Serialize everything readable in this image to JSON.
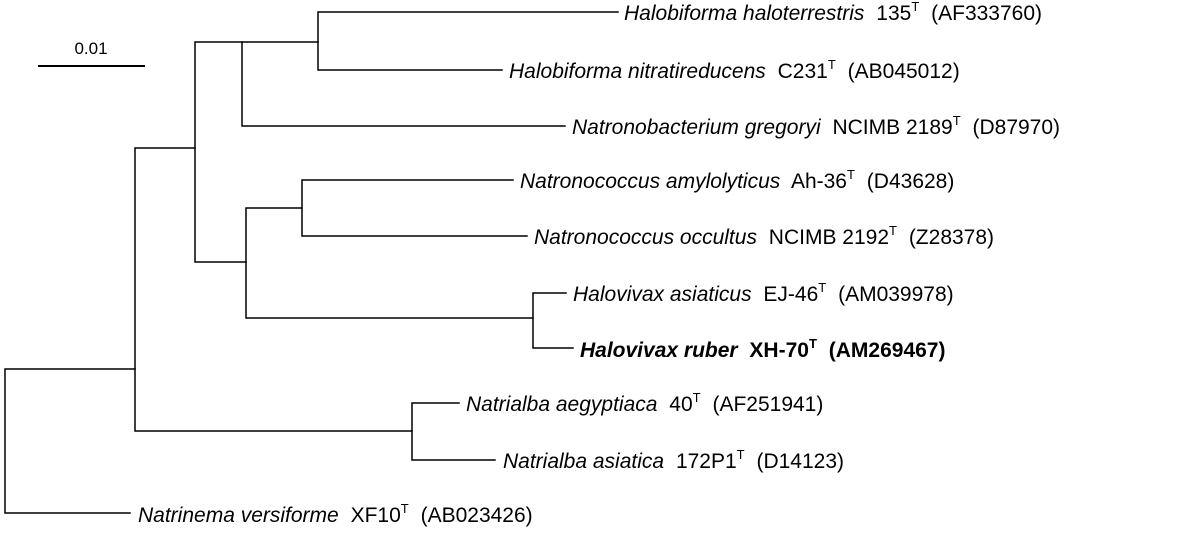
{
  "scale_bar": {
    "label": "0.01"
  },
  "taxa": [
    {
      "id": "halobiforma-haloterrestris",
      "genus_species": "Halobiforma haloterrestris",
      "strain": "135",
      "type_mark": "T",
      "accession": "(AF333760)",
      "bold": false
    },
    {
      "id": "halobiforma-nitratireducens",
      "genus_species": "Halobiforma nitratireducens",
      "strain": "C231",
      "type_mark": "T",
      "accession": "(AB045012)",
      "bold": false
    },
    {
      "id": "natronobacterium-gregoryi",
      "genus_species": "Natronobacterium gregoryi",
      "strain": "NCIMB 2189",
      "type_mark": "T",
      "accession": "(D87970)",
      "bold": false
    },
    {
      "id": "natronococcus-amylolyticus",
      "genus_species": "Natronococcus amylolyticus",
      "strain": "Ah-36",
      "type_mark": "T",
      "accession": "(D43628)",
      "bold": false
    },
    {
      "id": "natronococcus-occultus",
      "genus_species": "Natronococcus occultus",
      "strain": "NCIMB 2192",
      "type_mark": "T",
      "accession": "(Z28378)",
      "bold": false
    },
    {
      "id": "halovivax-asiaticus",
      "genus_species": "Halovivax asiaticus",
      "strain": "EJ-46",
      "type_mark": "T",
      "accession": "(AM039978)",
      "bold": false
    },
    {
      "id": "halovivax-ruber",
      "genus_species": "Halovivax ruber",
      "strain": "XH-70",
      "type_mark": "T",
      "accession": "(AM269467)",
      "bold": true
    },
    {
      "id": "natrialba-aegyptiaca",
      "genus_species": "Natrialba aegyptiaca",
      "strain": "40",
      "type_mark": "T",
      "accession": "(AF251941)",
      "bold": false
    },
    {
      "id": "natrialba-asiatica",
      "genus_species": "Natrialba asiatica",
      "strain": "172P1",
      "type_mark": "T",
      "accession": "(D14123)",
      "bold": false
    },
    {
      "id": "natrinema-versiforme",
      "genus_species": "Natrinema versiforme",
      "strain": "XF10",
      "type_mark": "T",
      "accession": "(AB023426)",
      "bold": false
    }
  ]
}
